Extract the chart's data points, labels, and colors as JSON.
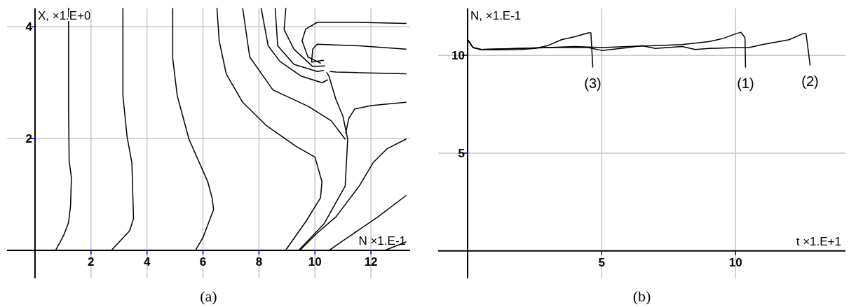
{
  "chart_data": [
    {
      "type": "line",
      "title": "(a)",
      "xlabel": "N ×1.E-1",
      "ylabel": "X, ×1.E+0",
      "xlim": [
        -1,
        13.4
      ],
      "ylim": [
        -0.5,
        4.33
      ],
      "xticks": [
        2,
        4,
        6,
        8,
        10,
        12
      ],
      "yticks": [
        2,
        4
      ],
      "grid": true,
      "series": [
        {
          "color": "#000000",
          "x": [
            0.73,
            0.9,
            1.05,
            1.2,
            1.27,
            1.3,
            1.22,
            1.2,
            1.2
          ],
          "values": [
            0,
            0.15,
            0.3,
            0.5,
            0.8,
            1.3,
            1.6,
            2.5,
            4.33
          ]
        },
        {
          "color": "#000000",
          "x": [
            2.73,
            3.1,
            3.38,
            3.52,
            3.46,
            3.29,
            3.14,
            3.14
          ],
          "values": [
            0,
            0.2,
            0.35,
            0.57,
            1.57,
            2.03,
            2.77,
            4.33
          ]
        },
        {
          "color": "#000000",
          "x": [
            5.73,
            6.0,
            6.38,
            6.33,
            6.17,
            5.5,
            5.08,
            4.92,
            4.92
          ],
          "values": [
            0,
            0.23,
            0.73,
            0.93,
            1.23,
            1.99,
            2.77,
            3.44,
            4.33
          ]
        },
        {
          "color": "#000000",
          "x": [
            8.95,
            9.68,
            10.2,
            10.25,
            10.0,
            9.33,
            8.25,
            7.42,
            6.83,
            6.58,
            6.5
          ],
          "values": [
            0,
            0.52,
            0.94,
            1.23,
            1.67,
            1.86,
            2.24,
            2.65,
            3.16,
            3.75,
            4.33
          ]
        },
        {
          "color": "#000000",
          "x": [
            9.42,
            10.33,
            11.08,
            11.17,
            11.0,
            10.75,
            10.5,
            10.42
          ],
          "values": [
            0,
            0.48,
            1.15,
            1.99,
            2.4,
            2.7,
            3.12,
            3.18
          ]
        },
        {
          "color": "#000000",
          "x": [
            7.42,
            7.67,
            8.5,
            9.75,
            10.58,
            11.08
          ],
          "values": [
            4.33,
            3.46,
            2.87,
            2.58,
            2.32,
            1.99
          ]
        },
        {
          "color": "#000000",
          "x": [
            8.08,
            8.33,
            8.75,
            9.5,
            10.25,
            10.45
          ],
          "values": [
            4.33,
            3.66,
            3.38,
            3.12,
            3.0,
            3.05
          ]
        },
        {
          "color": "#000000",
          "x": [
            8.58,
            8.67,
            9.25,
            10.08,
            10.3
          ],
          "values": [
            4.33,
            3.66,
            3.33,
            3.2,
            3.22
          ]
        },
        {
          "color": "#000000",
          "x": [
            8.96,
            8.9,
            9.25,
            9.92,
            10.35
          ],
          "values": [
            4.33,
            3.95,
            3.6,
            3.29,
            3.3
          ]
        },
        {
          "color": "#000000",
          "x": [
            13.25,
            11.58,
            10.08,
            9.67,
            9.54,
            9.75,
            10.2
          ],
          "values": [
            4.06,
            4.08,
            4.08,
            3.96,
            3.75,
            3.46,
            3.35
          ]
        },
        {
          "color": "#000000",
          "x": [
            13.25,
            11.58,
            10.08,
            9.92,
            9.88,
            10.3
          ],
          "values": [
            3.6,
            3.66,
            3.69,
            3.6,
            3.37,
            3.4
          ]
        },
        {
          "color": "#000000",
          "x": [
            13.25,
            11.58,
            10.75,
            10.55
          ],
          "values": [
            3.16,
            3.18,
            3.19,
            3.2
          ]
        },
        {
          "color": "#000000",
          "x": [
            13.25,
            12.0,
            11.42,
            11.21,
            11.1
          ],
          "values": [
            2.65,
            2.59,
            2.53,
            2.36,
            2.1
          ]
        },
        {
          "color": "#000000",
          "x": [
            13.25,
            12.58,
            12.08,
            11.58,
            10.75,
            10.08,
            9.58,
            9.46
          ],
          "values": [
            1.99,
            1.82,
            1.57,
            1.15,
            0.6,
            0.31,
            0.06,
            0
          ]
        },
        {
          "color": "#000000",
          "x": [
            13.25,
            12.25,
            11.17,
            10.5
          ],
          "values": [
            0.98,
            0.6,
            0.23,
            0
          ]
        },
        {
          "color": "#000000",
          "x": [
            12.5,
            13.25
          ],
          "values": [
            0,
            0.15
          ]
        }
      ]
    },
    {
      "type": "line",
      "title": "(b)",
      "xlabel": "t ×1.E+1",
      "ylabel": "N, ×1.E-1",
      "xlim": [
        -1.1,
        14.1
      ],
      "ylim": [
        -1.4,
        12.4
      ],
      "xticks": [
        5,
        10
      ],
      "yticks": [
        5,
        10
      ],
      "grid": true,
      "series": [
        {
          "color": "#000000",
          "x": [
            0,
            0.2,
            0.5,
            1,
            2,
            2.5,
            3,
            3.5,
            4,
            4.5,
            4.6,
            4.67
          ],
          "values": [
            10.8,
            10.4,
            10.3,
            10.28,
            10.3,
            10.35,
            10.5,
            10.8,
            10.95,
            11.15,
            11.15,
            9.4
          ]
        },
        {
          "color": "#000000",
          "x": [
            0,
            0.2,
            0.5,
            2,
            3,
            4,
            5,
            6,
            7,
            8,
            9,
            9.5,
            10,
            10.2,
            10.35,
            10.37
          ],
          "values": [
            10.8,
            10.4,
            10.3,
            10.35,
            10.4,
            10.45,
            10.4,
            10.45,
            10.5,
            10.55,
            10.7,
            10.85,
            11.1,
            11.18,
            10.9,
            9.4
          ]
        },
        {
          "color": "#000000",
          "x": [
            0,
            0.2,
            0.5,
            3,
            4.5,
            5,
            6,
            6.5,
            7,
            8,
            8.5,
            9,
            10,
            10.5,
            11,
            12,
            12.5,
            12.63,
            12.78
          ],
          "values": [
            10.8,
            10.4,
            10.3,
            10.4,
            10.4,
            10.25,
            10.4,
            10.5,
            10.35,
            10.45,
            10.3,
            10.35,
            10.4,
            10.4,
            10.55,
            10.8,
            11.1,
            11.1,
            9.5
          ]
        }
      ],
      "annotations": [
        {
          "text": "(3)",
          "x": 4.67,
          "y": 9.4
        },
        {
          "text": "(1)",
          "x": 10.37,
          "y": 9.4
        },
        {
          "text": "(2)",
          "x": 12.78,
          "y": 9.5
        }
      ]
    }
  ]
}
